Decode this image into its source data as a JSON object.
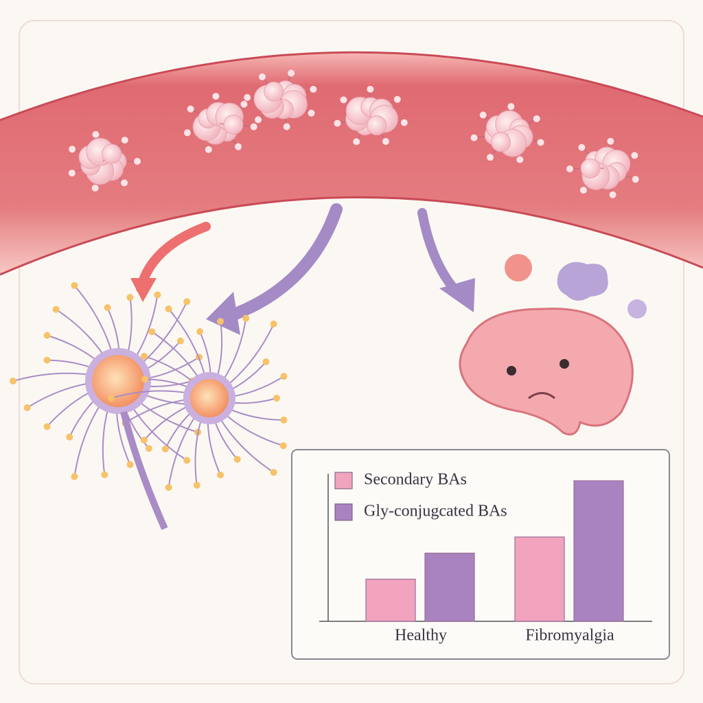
{
  "chart_data": {
    "type": "bar",
    "categories": [
      "Healthy",
      "Fibromyalgia"
    ],
    "series": [
      {
        "name": "Secondary BAs",
        "color": "#f2a3bd",
        "values": [
          60,
          120
        ]
      },
      {
        "name": "Gly-conjugcated BAs",
        "color": "#a883c0",
        "values": [
          97,
          200
        ]
      }
    ],
    "ylim": [
      0,
      210
    ]
  }
}
